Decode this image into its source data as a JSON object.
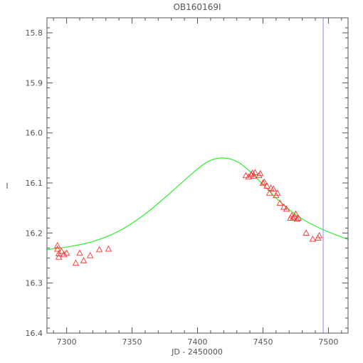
{
  "chart_data": {
    "type": "scatter",
    "title": "OB160169I",
    "xlabel": "JD - 2450000",
    "ylabel": "I",
    "xlim": [
      7285,
      7515
    ],
    "ylim": [
      16.4,
      15.77
    ],
    "y_inverted": true,
    "grid": false,
    "x_ticks": [
      7300,
      7350,
      7400,
      7450,
      7500
    ],
    "x_tick_labels": [
      "7300",
      "7350",
      "7400",
      "7450",
      "7500"
    ],
    "y_ticks": [
      15.8,
      15.9,
      16.0,
      16.1,
      16.2,
      16.3,
      16.4
    ],
    "y_tick_labels": [
      "15.8",
      "15.9",
      "16.0",
      "16.1",
      "16.2",
      "16.3",
      "16.4"
    ],
    "series": [
      {
        "kind": "points",
        "marker": "triangle-open",
        "color": "#ff3333",
        "points": [
          [
            7293,
            16.225
          ],
          [
            7293,
            16.232
          ],
          [
            7294,
            16.241
          ],
          [
            7294,
            16.248
          ],
          [
            7296,
            16.236
          ],
          [
            7298,
            16.243
          ],
          [
            7300,
            16.24
          ],
          [
            7307,
            16.26
          ],
          [
            7310,
            16.24
          ],
          [
            7313,
            16.255
          ],
          [
            7318,
            16.245
          ],
          [
            7325,
            16.233
          ],
          [
            7332,
            16.232
          ],
          [
            7437,
            16.085
          ],
          [
            7439,
            16.088
          ],
          [
            7441,
            16.083
          ],
          [
            7442,
            16.08
          ],
          [
            7443,
            16.086
          ],
          [
            7444,
            16.079
          ],
          [
            7447,
            16.085
          ],
          [
            7448,
            16.081
          ],
          [
            7450,
            16.1
          ],
          [
            7451,
            16.098
          ],
          [
            7453,
            16.106
          ],
          [
            7455,
            16.12
          ],
          [
            7456,
            16.11
          ],
          [
            7458,
            16.112
          ],
          [
            7460,
            16.125
          ],
          [
            7461,
            16.12
          ],
          [
            7463,
            16.14
          ],
          [
            7466,
            16.148
          ],
          [
            7468,
            16.152
          ],
          [
            7471,
            16.17
          ],
          [
            7472,
            16.165
          ],
          [
            7473,
            16.17
          ],
          [
            7474,
            16.168
          ],
          [
            7475,
            16.162
          ],
          [
            7476,
            16.172
          ],
          [
            7477,
            16.17
          ],
          [
            7483,
            16.2
          ],
          [
            7488,
            16.212
          ],
          [
            7492,
            16.21
          ],
          [
            7493,
            16.205
          ]
        ]
      },
      {
        "kind": "line",
        "color": "#33ee33",
        "points": [
          [
            7285,
            16.233
          ],
          [
            7300,
            16.228
          ],
          [
            7320,
            16.217
          ],
          [
            7340,
            16.196
          ],
          [
            7360,
            16.162
          ],
          [
            7380,
            16.118
          ],
          [
            7395,
            16.083
          ],
          [
            7405,
            16.062
          ],
          [
            7412,
            16.053
          ],
          [
            7418,
            16.05
          ],
          [
            7425,
            16.052
          ],
          [
            7432,
            16.06
          ],
          [
            7440,
            16.077
          ],
          [
            7450,
            16.103
          ],
          [
            7460,
            16.13
          ],
          [
            7470,
            16.153
          ],
          [
            7480,
            16.172
          ],
          [
            7490,
            16.186
          ],
          [
            7500,
            16.198
          ],
          [
            7515,
            16.213
          ]
        ]
      },
      {
        "kind": "vline",
        "color": "#8888ee",
        "x": 7496
      }
    ]
  }
}
